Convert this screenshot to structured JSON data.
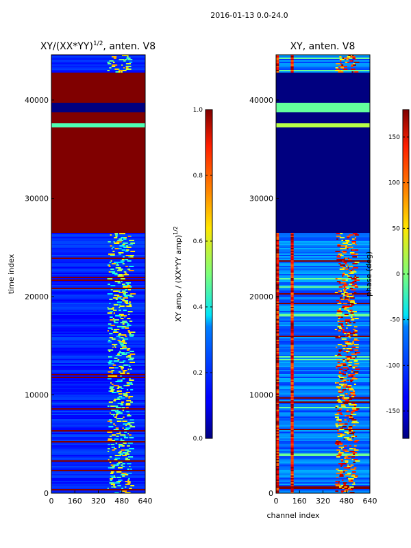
{
  "figure": {
    "title": "2016-01-13 0.0-24.0"
  },
  "chart_data": [
    {
      "type": "heatmap",
      "title_main": "XY/(XX*YY)",
      "title_exp": "1/2",
      "title_rest": ", anten. V8",
      "xlabel": "",
      "ylabel": "time index",
      "xlim": [
        0,
        640
      ],
      "ylim": [
        0,
        44600
      ],
      "xticks": [
        0,
        160,
        320,
        480,
        640
      ],
      "yticks": [
        0,
        10000,
        20000,
        30000,
        40000
      ],
      "colorbar": {
        "label_main": "XY amp. / (XX*YY amp)",
        "label_exp": "1/2",
        "vmin": 0.0,
        "vmax": 1.0,
        "ticks": [
          "0.0",
          "0.2",
          "0.4",
          "0.6",
          "0.8",
          "1.0"
        ]
      },
      "blocks": [
        {
          "y0": 26500,
          "y1": 42800,
          "value": 1.0
        },
        {
          "y0": 38800,
          "y1": 39700,
          "value": 0.0
        },
        {
          "y0": 37200,
          "y1": 37700,
          "value": 0.45
        }
      ],
      "background_value": 0.12,
      "bright_channel_range": [
        380,
        560
      ]
    },
    {
      "type": "heatmap",
      "title": "XY, anten. V8",
      "xlabel": "channel index",
      "ylabel": "",
      "xlim": [
        0,
        640
      ],
      "ylim": [
        0,
        44600
      ],
      "xticks": [
        0,
        160,
        320,
        480,
        640
      ],
      "yticks": [
        0,
        10000,
        20000,
        30000,
        40000
      ],
      "colorbar": {
        "label": "phase (deg)",
        "vmin": -180,
        "vmax": 180,
        "ticks": [
          -150,
          -100,
          -50,
          0,
          50,
          100,
          150
        ]
      },
      "blocks": [
        {
          "y0": 26500,
          "y1": 42800,
          "value": -180
        },
        {
          "y0": 38800,
          "y1": 39700,
          "value": -10
        },
        {
          "y0": 37200,
          "y1": 37700,
          "value": 20
        }
      ],
      "hot_channel_ranges": [
        [
          0,
          20
        ],
        [
          100,
          120
        ]
      ],
      "bright_channel_range": [
        400,
        560
      ]
    }
  ]
}
